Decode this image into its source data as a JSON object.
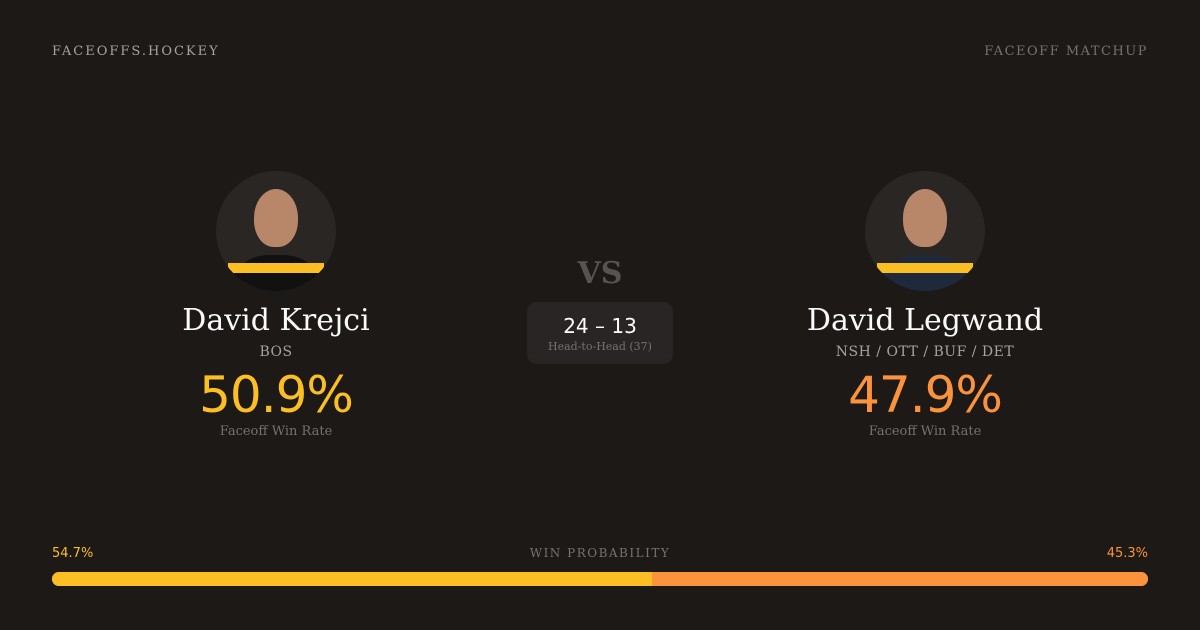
{
  "header": {
    "brand": "FACEOFFS.HOCKEY",
    "tag": "FACEOFF MATCHUP"
  },
  "player1": {
    "name": "David Krejci",
    "team": "BOS",
    "win_rate": "50.9%",
    "win_rate_label": "Faceoff Win Rate",
    "color": "#fbbf24"
  },
  "player2": {
    "name": "David Legwand",
    "team": "NSH / OTT / BUF / DET",
    "win_rate": "47.9%",
    "win_rate_label": "Faceoff Win Rate",
    "color": "#fb923c"
  },
  "vs": "VS",
  "head_to_head": {
    "score": "24 – 13",
    "label": "Head-to-Head (37)"
  },
  "probability": {
    "label": "WIN PROBABILITY",
    "left": "54.7%",
    "right": "45.3%",
    "left_value": 54.7
  }
}
